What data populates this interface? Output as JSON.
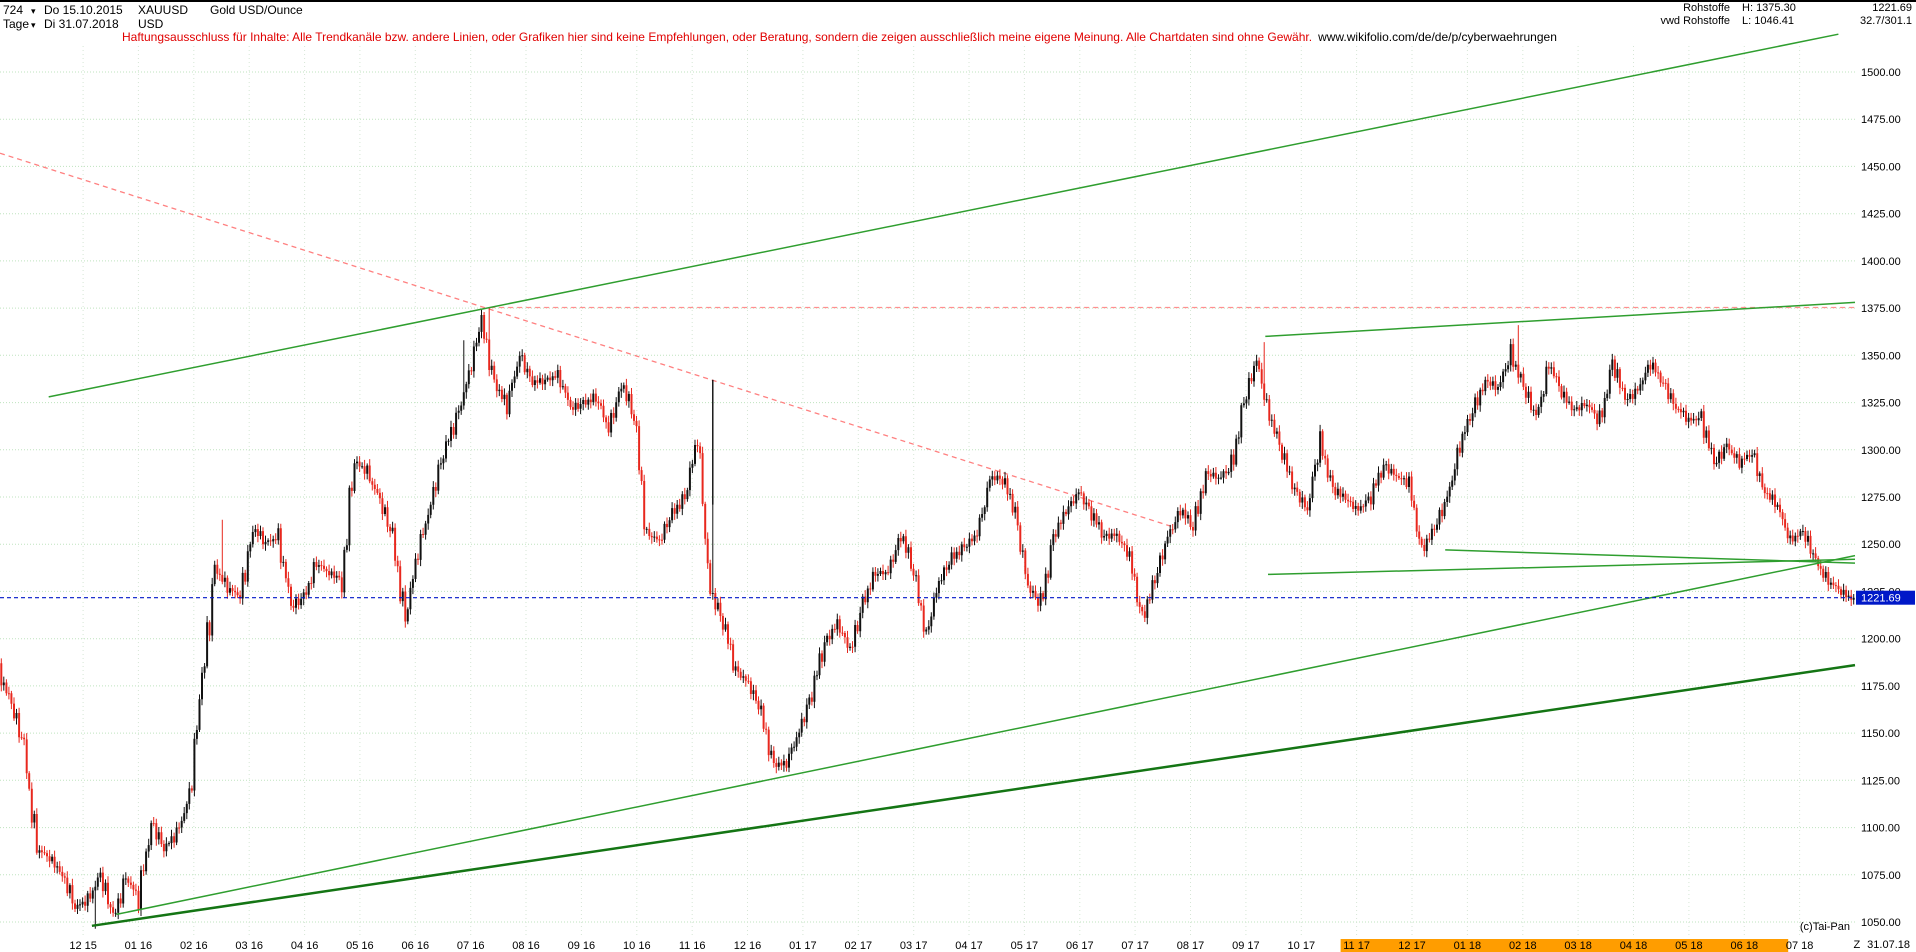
{
  "icons": {
    "dropdown": "▾"
  },
  "header": {
    "bars_count": "724",
    "start_date": "Do 15.10.2015",
    "symbol": "XAUUSD",
    "instrument_name": "Gold USD/Ounce",
    "period": "Tage",
    "end_date": "Di 31.07.2018",
    "currency": "USD"
  },
  "disclaimer": {
    "text": "Haftungsausschluss für Inhalte: Alle Trendkanäle bzw. andere Linien, oder Grafiken hier sind keine Empfehlungen, oder Beratung, sondern die zeigen ausschließlich meine eigene Meinung. Alle Chartdaten sind ohne Gewähr.",
    "link": "www.wikifolio.com/de/de/p/cyberwaehrungen"
  },
  "quote_panel": {
    "group": "Rohstoffe",
    "feed": "vwd Rohstoffe",
    "high_label": "H:",
    "high": "1375.30",
    "low_label": "L:",
    "low": "1046.41",
    "last": "1221.69",
    "range_info": "32.7/301.1"
  },
  "footer": {
    "copyright": "(c)Tai-Pan",
    "cursor_flag": "Z",
    "cursor_date": "31.07.18"
  },
  "colors": {
    "accent_blue": "#0018c8",
    "candle_up": "#111111",
    "candle_down": "#e8281e",
    "grid_horizontal": "#bfe3bf",
    "grid_vertical": "#d6e6d6",
    "orange_highlight": "#ff9d00",
    "disclaimer_red": "#e00000"
  },
  "chart_data": {
    "type": "candlestick",
    "title": "Gold USD/Ounce (XAUUSD) - Tage",
    "x_start": "15.10.2015",
    "x_end": "31.07.2018",
    "x_months": 33.5,
    "ylim": [
      1020,
      1520
    ],
    "y_ticks": [
      1500,
      1475,
      1450,
      1425,
      1400,
      1375,
      1350,
      1325,
      1300,
      1275,
      1250,
      1225,
      1200,
      1175,
      1150,
      1125,
      1100,
      1075,
      1050
    ],
    "x_tick_labels": [
      "12 15",
      "01 16",
      "02 16",
      "03 16",
      "04 16",
      "05 16",
      "06 16",
      "07 16",
      "08 16",
      "09 16",
      "10 16",
      "11 16",
      "12 16",
      "01 17",
      "02 17",
      "03 17",
      "04 17",
      "05 17",
      "06 17",
      "07 17",
      "08 17",
      "09 17",
      "10 17",
      "11 17",
      "12 17",
      "01 18",
      "02 18",
      "03 18",
      "04 18",
      "05 18",
      "06 18",
      "07 18"
    ],
    "highlighted_x_labels": [
      "11 17",
      "12 17",
      "01 18",
      "02 18",
      "03 18",
      "04 18",
      "05 18",
      "06 18"
    ],
    "current_price": 1221.69,
    "high": 1375.3,
    "low": 1046.41,
    "weekly_close": [
      1184,
      1164,
      1142,
      1089,
      1083,
      1077,
      1057,
      1062,
      1075,
      1051,
      1075,
      1061,
      1104,
      1089,
      1096,
      1118,
      1174,
      1239,
      1226,
      1223,
      1259,
      1250,
      1255,
      1216,
      1222,
      1240,
      1234,
      1233,
      1293,
      1289,
      1273,
      1252,
      1212,
      1244,
      1274,
      1298,
      1316,
      1341,
      1366,
      1337,
      1322,
      1351,
      1336,
      1336,
      1341,
      1321,
      1325,
      1328,
      1310,
      1337,
      1316,
      1257,
      1251,
      1266,
      1276,
      1304,
      1227,
      1208,
      1184,
      1177,
      1159,
      1134,
      1133,
      1152,
      1172,
      1197,
      1210,
      1191,
      1220,
      1234,
      1235,
      1257,
      1234,
      1204,
      1229,
      1243,
      1249,
      1254,
      1286,
      1284,
      1268,
      1228,
      1216,
      1255,
      1266,
      1279,
      1266,
      1254,
      1256,
      1241,
      1212,
      1230,
      1254,
      1269,
      1258,
      1289,
      1284,
      1291,
      1325,
      1346,
      1320,
      1297,
      1280,
      1268,
      1304,
      1280,
      1273,
      1269,
      1275,
      1292,
      1287,
      1280,
      1248,
      1257,
      1275,
      1303,
      1320,
      1338,
      1331,
      1352,
      1333,
      1316,
      1347,
      1329,
      1322,
      1324,
      1314,
      1347,
      1325,
      1333,
      1345,
      1336,
      1323,
      1315,
      1318,
      1291,
      1303,
      1293,
      1298,
      1279,
      1269,
      1253,
      1256,
      1241,
      1231,
      1224,
      1221.69
    ],
    "spikes": [
      {
        "index": 37,
        "low": 1046.41
      },
      {
        "index": 87,
        "high": 1263
      },
      {
        "index": 182,
        "high": 1358
      },
      {
        "index": 192,
        "high": 1375.3
      },
      {
        "index": 280,
        "high": 1337,
        "low": 1271,
        "tall": true
      },
      {
        "index": 497,
        "high": 1357
      },
      {
        "index": 597,
        "high": 1366
      }
    ],
    "trendlines": [
      {
        "name": "upper-channel-line",
        "color": "#2f9e2f",
        "width": 1.5,
        "dash": "",
        "behind": false,
        "points": [
          [
            0.88,
            1328
          ],
          [
            33.2,
            1520
          ]
        ]
      },
      {
        "name": "main-support-line",
        "color": "#2f9e2f",
        "width": 1.5,
        "dash": "",
        "behind": false,
        "points": [
          [
            2.1,
            1054
          ],
          [
            33.5,
            1244
          ]
        ]
      },
      {
        "name": "lower-channel-thick-line",
        "color": "#147514",
        "width": 2.5,
        "dash": "",
        "behind": false,
        "points": [
          [
            1.66,
            1048
          ],
          [
            33.5,
            1186
          ]
        ]
      },
      {
        "name": "resistance-line-top-right",
        "color": "#2f9e2f",
        "width": 1.5,
        "dash": "",
        "behind": false,
        "points": [
          [
            22.85,
            1360
          ],
          [
            33.5,
            1378
          ]
        ]
      },
      {
        "name": "wedge-support-line",
        "color": "#2f9e2f",
        "width": 1.5,
        "dash": "",
        "behind": false,
        "points": [
          [
            22.9,
            1234
          ],
          [
            33.5,
            1242
          ]
        ]
      },
      {
        "name": "wedge-resistance-line",
        "color": "#2f9e2f",
        "width": 1.5,
        "dash": "",
        "behind": false,
        "points": [
          [
            26.1,
            1247
          ],
          [
            33.5,
            1240
          ]
        ]
      },
      {
        "name": "downtrend-line-red",
        "color": "#ff8080",
        "width": 1.3,
        "dash": "5,4",
        "behind": true,
        "points": [
          [
            0,
            1457
          ],
          [
            21.2,
            1259
          ]
        ]
      },
      {
        "name": "high-level-line-red",
        "color": "#ff9090",
        "width": 1.3,
        "dash": "5,4",
        "behind": true,
        "points": [
          [
            8.85,
            1375.3
          ],
          [
            33.5,
            1375.3
          ]
        ]
      },
      {
        "name": "last-price-line",
        "color": "#0018c8",
        "width": 1.2,
        "dash": "4,3",
        "behind": false,
        "points": [
          [
            0,
            1221.69
          ],
          [
            33.5,
            1221.69
          ]
        ]
      }
    ]
  }
}
